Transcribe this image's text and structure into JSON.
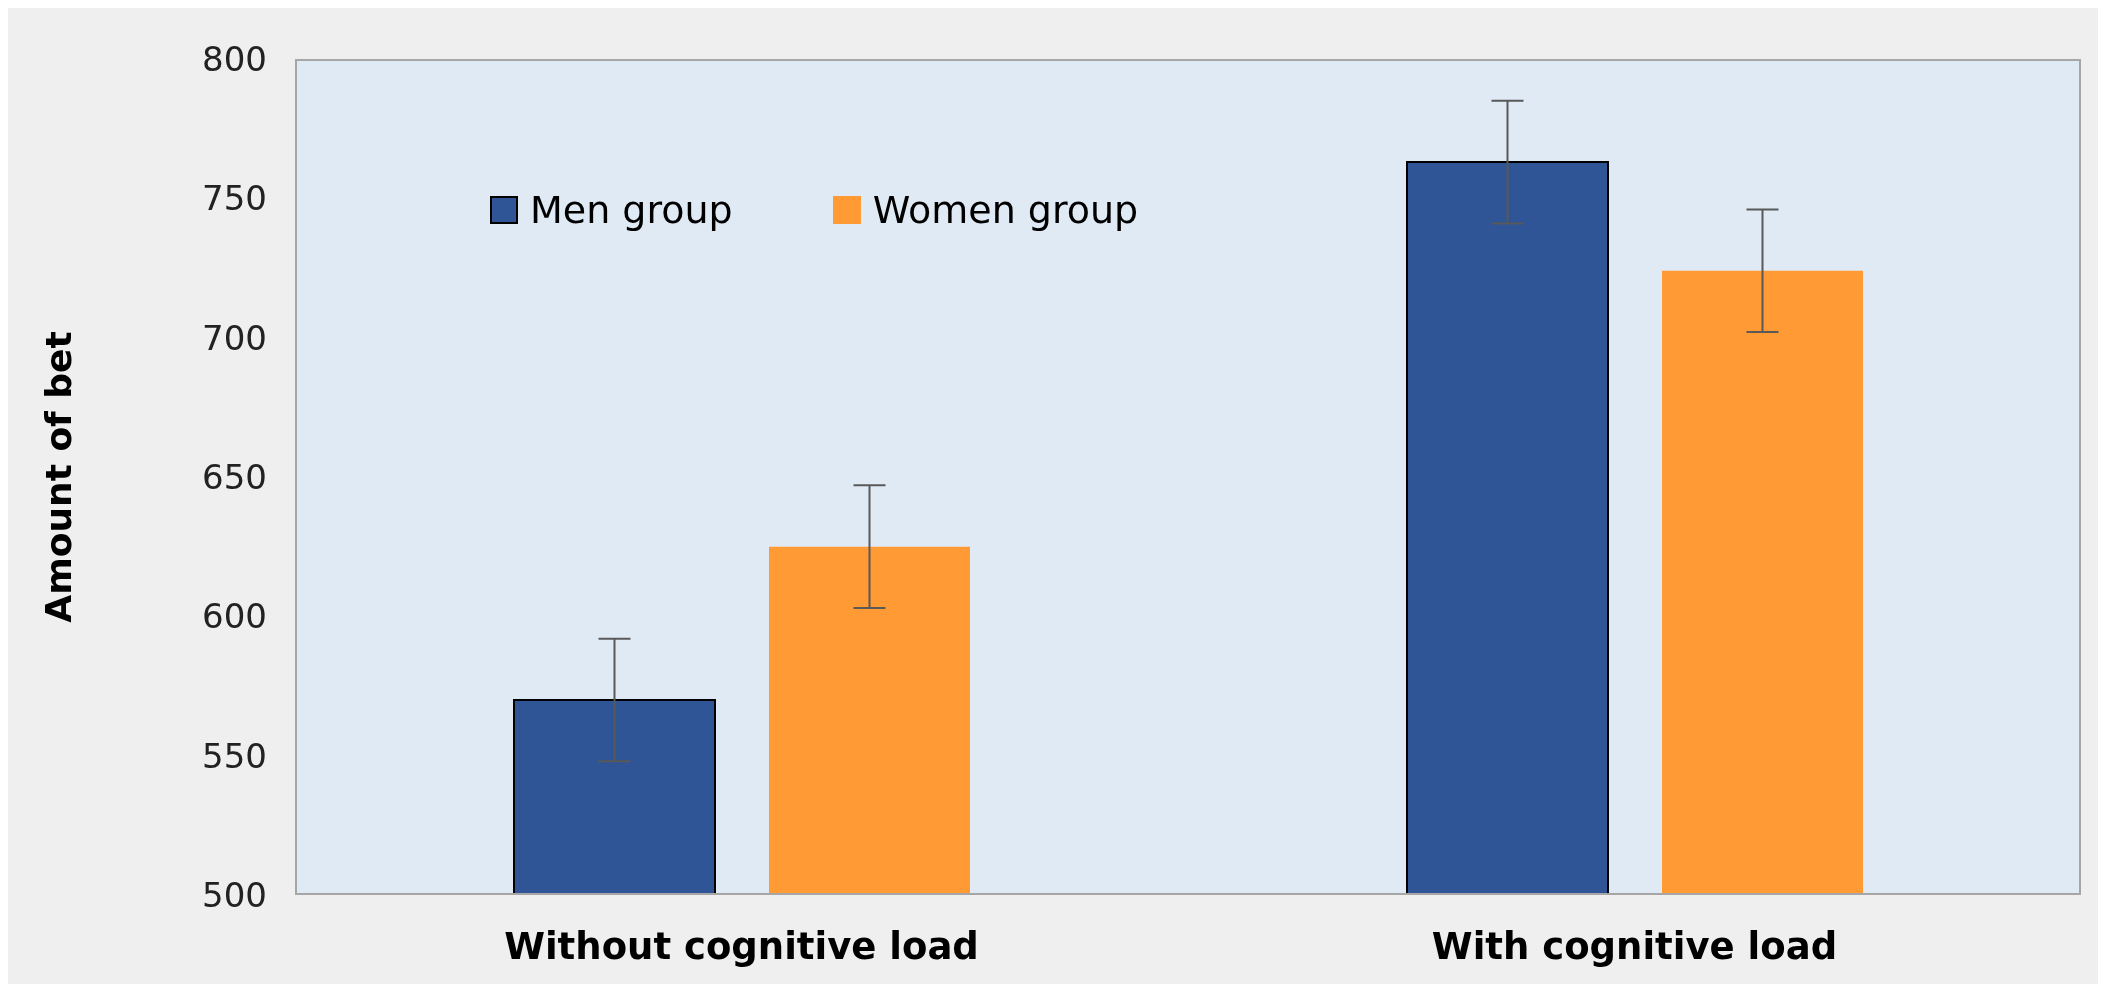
{
  "chart_data": {
    "type": "bar",
    "ylabel": "Amount of bet",
    "categories": [
      "Without cognitive load",
      "With cognitive load"
    ],
    "series": [
      {
        "name": "Men group",
        "color": "#2f5597",
        "values": [
          570,
          763
        ],
        "errors": [
          22,
          22
        ]
      },
      {
        "name": "Women group",
        "color": "#ff9a35",
        "values": [
          625,
          724
        ],
        "errors": [
          22,
          22
        ]
      }
    ],
    "ylim": [
      500,
      800
    ],
    "yticks": [
      500,
      550,
      600,
      650,
      700,
      750,
      800
    ],
    "grid": false,
    "legend": "top left"
  }
}
